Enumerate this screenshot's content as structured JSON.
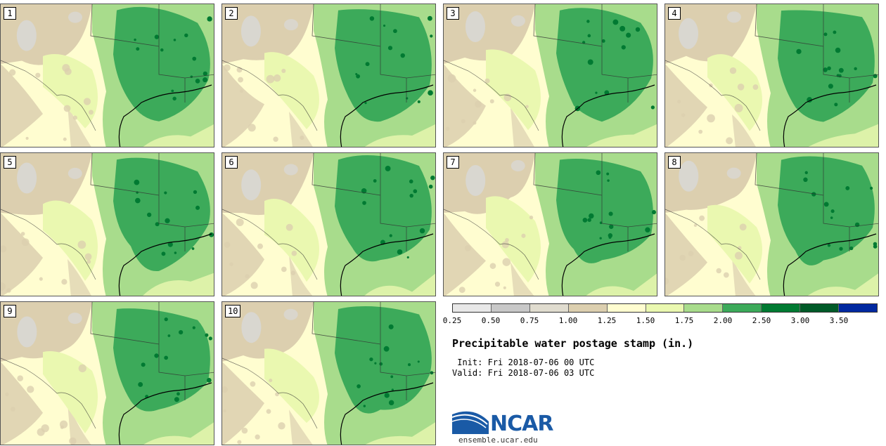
{
  "panels": [
    {
      "label": "1"
    },
    {
      "label": "2"
    },
    {
      "label": "3"
    },
    {
      "label": "4"
    },
    {
      "label": "5"
    },
    {
      "label": "6"
    },
    {
      "label": "7"
    },
    {
      "label": "8"
    },
    {
      "label": "9"
    },
    {
      "label": "10"
    }
  ],
  "legend": {
    "colors": [
      "#e8e8e8",
      "#c8c8c8",
      "#e0dccf",
      "#dccfaf",
      "#fffdd0",
      "#eaf8b0",
      "#a8dc8c",
      "#3caa5a",
      "#007a32",
      "#005a28",
      "#0028a0"
    ],
    "ticks": [
      "0.25",
      "0.50",
      "0.75",
      "1.00",
      "1.25",
      "1.50",
      "1.75",
      "2.00",
      "2.50",
      "3.00",
      "3.50"
    ]
  },
  "title": "Precipitable water postage stamp (in.)",
  "init_line": " Init: Fri 2018-07-06 00 UTC",
  "valid_line": "Valid: Fri 2018-07-06 03 UTC",
  "logo": {
    "name": "NCAR",
    "url": "ensemble.ucar.edu"
  },
  "map_colors": {
    "dry": "#dccfaf",
    "gray": "#d8d8d8",
    "cream": "#fffdd0",
    "light": "#eaf8b0",
    "mid": "#a8dc8c",
    "wet": "#3caa5a",
    "dark": "#007a32"
  }
}
